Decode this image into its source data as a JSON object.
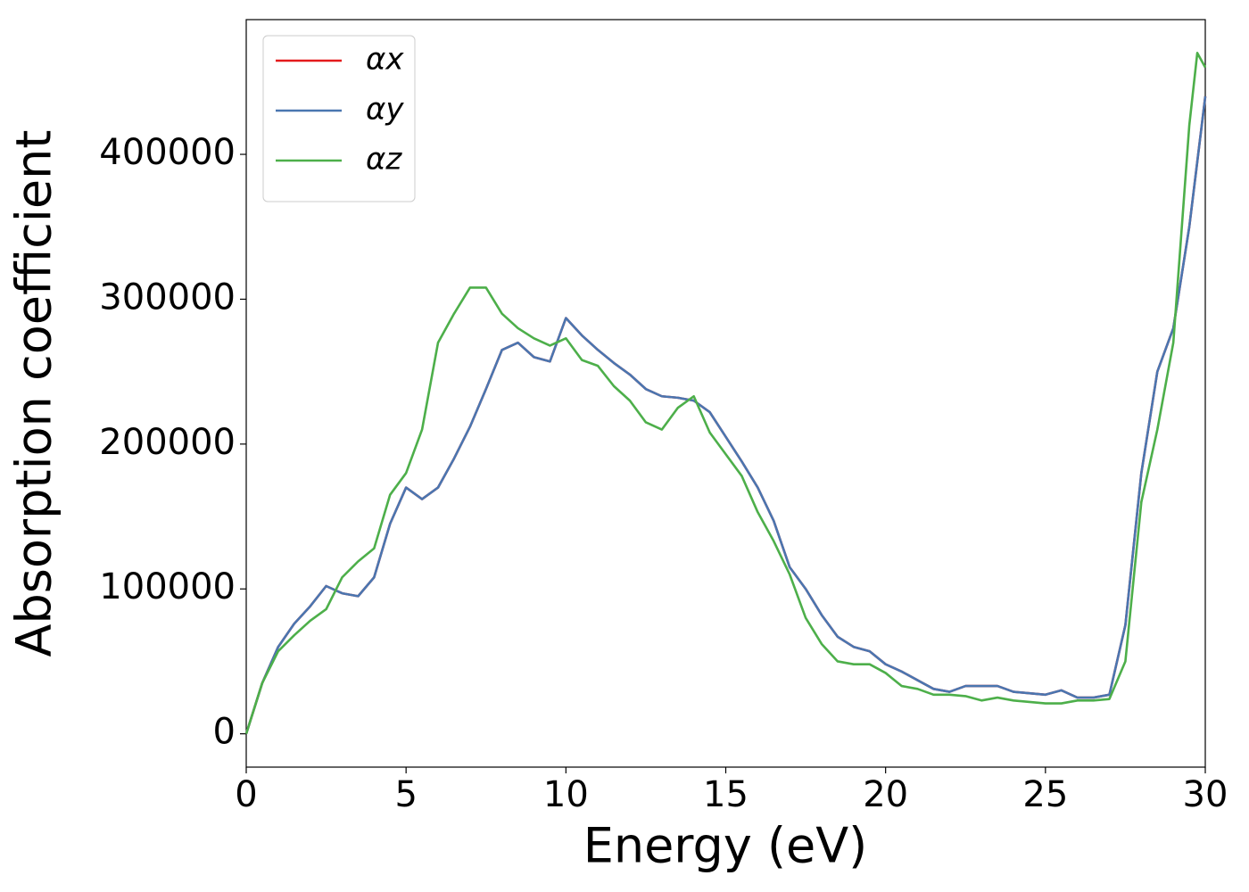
{
  "chart_data": {
    "type": "line",
    "x_label": "Energy (eV)",
    "y_label": "Absorption coefficient",
    "x": [
      0,
      0.5,
      1,
      1.5,
      2,
      2.5,
      3,
      3.5,
      4,
      4.5,
      5,
      5.5,
      6,
      6.5,
      7,
      7.5,
      8,
      8.5,
      9,
      9.5,
      10,
      10.5,
      11,
      11.5,
      12,
      12.5,
      13,
      13.5,
      14,
      14.5,
      15,
      15.5,
      16,
      16.5,
      17,
      17.5,
      18,
      18.5,
      19,
      19.5,
      20,
      20.5,
      21,
      21.5,
      22,
      22.5,
      23,
      23.5,
      24,
      24.5,
      25,
      25.5,
      26,
      26.5,
      27,
      27.5,
      28,
      28.5,
      29,
      29.5,
      29.75,
      30
    ],
    "series": [
      {
        "name": "αx",
        "color": "#e41a1c",
        "values": [
          0,
          35000,
          60000,
          76000,
          88000,
          102000,
          97000,
          95000,
          108000,
          145000,
          170000,
          162000,
          170000,
          190000,
          212000,
          238000,
          265000,
          270000,
          260000,
          257000,
          287000,
          275000,
          265000,
          256000,
          248000,
          238000,
          233000,
          232000,
          230000,
          222000,
          205000,
          188000,
          170000,
          147000,
          115000,
          100000,
          82000,
          67000,
          60000,
          57000,
          48000,
          43000,
          37000,
          31000,
          29000,
          33000,
          33000,
          33000,
          29000,
          28000,
          27000,
          30000,
          25000,
          25000,
          27000,
          75000,
          180000,
          250000,
          280000,
          350000,
          395000,
          440000
        ]
      },
      {
        "name": "αy",
        "color": "#4a76b0",
        "values": [
          0,
          35000,
          60000,
          76000,
          88000,
          102000,
          97000,
          95000,
          108000,
          145000,
          170000,
          162000,
          170000,
          190000,
          212000,
          238000,
          265000,
          270000,
          260000,
          257000,
          287000,
          275000,
          265000,
          256000,
          248000,
          238000,
          233000,
          232000,
          230000,
          222000,
          205000,
          188000,
          170000,
          147000,
          115000,
          100000,
          82000,
          67000,
          60000,
          57000,
          48000,
          43000,
          37000,
          31000,
          29000,
          33000,
          33000,
          33000,
          29000,
          28000,
          27000,
          30000,
          25000,
          25000,
          27000,
          75000,
          180000,
          250000,
          280000,
          350000,
          395000,
          440000
        ]
      },
      {
        "name": "αz",
        "color": "#4daf4a",
        "values": [
          0,
          35000,
          57000,
          68000,
          78000,
          86000,
          108000,
          119000,
          128000,
          165000,
          180000,
          210000,
          270000,
          290000,
          308000,
          308000,
          290000,
          280000,
          273000,
          268000,
          273000,
          258000,
          254000,
          240000,
          230000,
          215000,
          210000,
          225000,
          233000,
          208000,
          193000,
          178000,
          153000,
          133000,
          110000,
          80000,
          62000,
          50000,
          48000,
          48000,
          42000,
          33000,
          31000,
          27000,
          27000,
          26000,
          23000,
          25000,
          23000,
          22000,
          21000,
          21000,
          23000,
          23000,
          24000,
          50000,
          160000,
          210000,
          270000,
          420000,
          470000,
          460000
        ]
      }
    ],
    "xlim": [
      0,
      30
    ],
    "xticks": [
      0,
      5,
      10,
      15,
      20,
      25,
      30
    ],
    "ylim": [
      -23000,
      493000
    ],
    "yticks": [
      0,
      100000,
      200000,
      300000,
      400000
    ],
    "legend": "upper left"
  }
}
